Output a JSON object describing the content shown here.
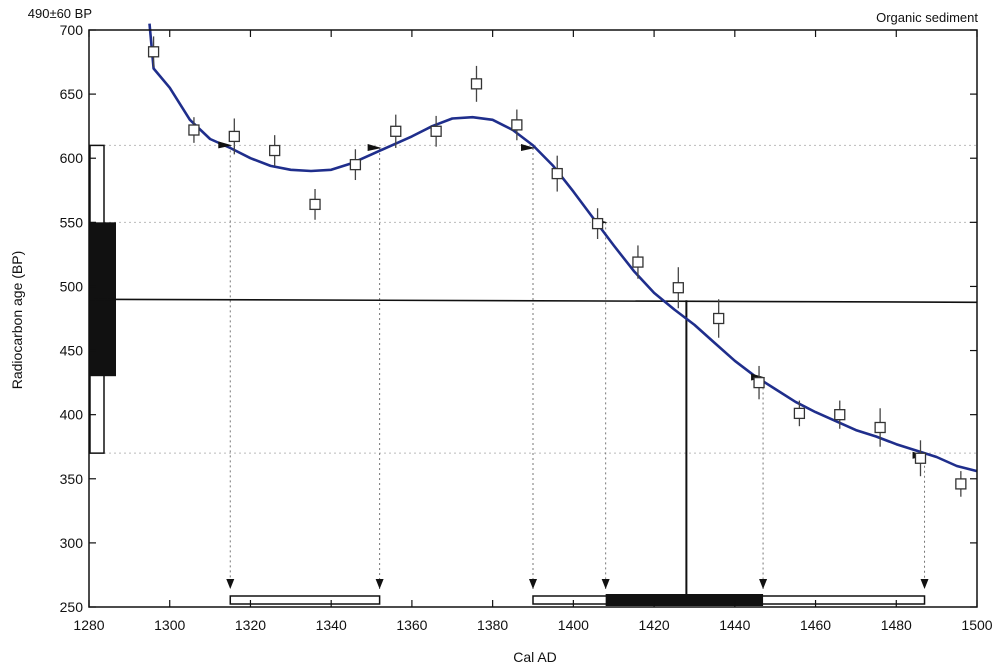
{
  "chart_data": {
    "type": "scatter",
    "top_left_label": "490±60 BP",
    "top_right_label": "Organic sediment",
    "xlabel": "Cal AD",
    "ylabel": "Radiocarbon age (BP)",
    "xlim": [
      1280,
      1500
    ],
    "ylim": [
      250,
      700
    ],
    "x_ticks": [
      "1280",
      "1300",
      "1320",
      "1340",
      "1360",
      "1380",
      "1400",
      "1420",
      "1440",
      "1460",
      "1480",
      "1500"
    ],
    "y_ticks": [
      "250",
      "300",
      "350",
      "400",
      "450",
      "500",
      "550",
      "600",
      "650",
      "700"
    ],
    "sample_age": 490,
    "one_sigma": [
      430,
      550
    ],
    "two_sigma": [
      370,
      610
    ],
    "calibration_curve": [
      [
        1295,
        705
      ],
      [
        1296,
        670
      ],
      [
        1300,
        655
      ],
      [
        1305,
        630
      ],
      [
        1310,
        615
      ],
      [
        1315,
        608
      ],
      [
        1320,
        600
      ],
      [
        1325,
        594
      ],
      [
        1330,
        591
      ],
      [
        1335,
        590
      ],
      [
        1340,
        591
      ],
      [
        1345,
        596
      ],
      [
        1350,
        603
      ],
      [
        1355,
        610
      ],
      [
        1360,
        617
      ],
      [
        1365,
        625
      ],
      [
        1370,
        631
      ],
      [
        1375,
        632
      ],
      [
        1380,
        630
      ],
      [
        1385,
        622
      ],
      [
        1390,
        610
      ],
      [
        1395,
        594
      ],
      [
        1400,
        574
      ],
      [
        1405,
        553
      ],
      [
        1410,
        532
      ],
      [
        1415,
        512
      ],
      [
        1420,
        495
      ],
      [
        1425,
        482
      ],
      [
        1430,
        470
      ],
      [
        1435,
        456
      ],
      [
        1440,
        442
      ],
      [
        1445,
        430
      ],
      [
        1450,
        420
      ],
      [
        1455,
        410
      ],
      [
        1460,
        402
      ],
      [
        1465,
        395
      ],
      [
        1470,
        388
      ],
      [
        1475,
        383
      ],
      [
        1480,
        377
      ],
      [
        1485,
        372
      ],
      [
        1490,
        367
      ],
      [
        1495,
        360
      ],
      [
        1500,
        356
      ]
    ],
    "data_points": [
      {
        "x": 1296,
        "y": 683,
        "err": 12
      },
      {
        "x": 1306,
        "y": 622,
        "err": 10
      },
      {
        "x": 1316,
        "y": 617,
        "err": 14
      },
      {
        "x": 1326,
        "y": 606,
        "err": 12
      },
      {
        "x": 1336,
        "y": 564,
        "err": 12
      },
      {
        "x": 1346,
        "y": 595,
        "err": 12
      },
      {
        "x": 1356,
        "y": 621,
        "err": 13
      },
      {
        "x": 1366,
        "y": 621,
        "err": 12
      },
      {
        "x": 1376,
        "y": 658,
        "err": 14
      },
      {
        "x": 1386,
        "y": 626,
        "err": 12
      },
      {
        "x": 1396,
        "y": 588,
        "err": 14
      },
      {
        "x": 1406,
        "y": 549,
        "err": 12
      },
      {
        "x": 1416,
        "y": 519,
        "err": 13
      },
      {
        "x": 1426,
        "y": 499,
        "err": 16
      },
      {
        "x": 1436,
        "y": 475,
        "err": 15
      },
      {
        "x": 1446,
        "y": 425,
        "err": 13
      },
      {
        "x": 1456,
        "y": 401,
        "err": 10
      },
      {
        "x": 1466,
        "y": 400,
        "err": 11
      },
      {
        "x": 1476,
        "y": 390,
        "err": 15
      },
      {
        "x": 1486,
        "y": 366,
        "err": 14
      },
      {
        "x": 1496,
        "y": 346,
        "err": 10
      }
    ],
    "intercept_markers": [
      {
        "x": 1315,
        "y": 610
      },
      {
        "x": 1352,
        "y": 608
      },
      {
        "x": 1390,
        "y": 608
      },
      {
        "x": 1408,
        "y": 550
      },
      {
        "x": 1447,
        "y": 429
      },
      {
        "x": 1487,
        "y": 368
      }
    ],
    "one_sigma_range": [
      1408,
      1447
    ],
    "median_age": 1428,
    "two_sigma_ranges": [
      [
        1315,
        1352
      ],
      [
        1390,
        1487
      ]
    ]
  }
}
